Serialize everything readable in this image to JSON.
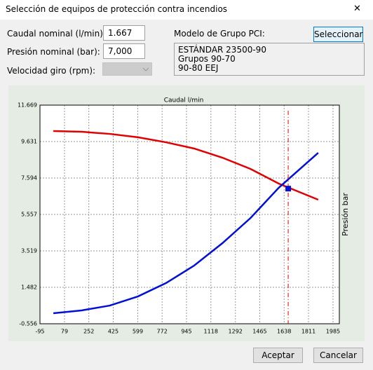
{
  "window": {
    "title": "Selección de equipos de protección contra incendios",
    "close": "✕"
  },
  "form": {
    "caudal_label": "Caudal nominal (l/min):",
    "caudal_value": "1.667",
    "presion_label": "Presión nominal (bar):",
    "presion_value": "7,000",
    "velocidad_label": "Velocidad giro (rpm):",
    "modelo_label": "Modelo de Grupo PCI:",
    "select_button": "Seleccionar",
    "modelo_lines": [
      "ESTÁNDAR 23500-90",
      "Grupos 90-70",
      "90-80 EEJ"
    ]
  },
  "buttons": {
    "accept": "Aceptar",
    "cancel": "Cancelar"
  },
  "chart_data": {
    "type": "line",
    "title": "Caudal l/min",
    "ylabel": "Presión bar",
    "x": [
      0,
      200,
      400,
      600,
      800,
      1000,
      1200,
      1400,
      1600,
      1880
    ],
    "series": [
      {
        "color": "#e00000",
        "values": [
          10.22,
          10.18,
          10.06,
          9.87,
          9.59,
          9.24,
          8.73,
          8.1,
          7.28,
          6.38
        ]
      },
      {
        "color": "#0010d8",
        "values": [
          0.03,
          0.19,
          0.46,
          0.97,
          1.72,
          2.7,
          3.95,
          5.36,
          7.05,
          9.0
        ]
      }
    ],
    "point": {
      "x": 1667,
      "y": 7.0
    },
    "xlim": [
      -95,
      2030
    ],
    "ylim": [
      -0.556,
      11.669
    ],
    "xticks": [
      -95,
      79,
      252,
      425,
      599,
      772,
      945,
      1118,
      1292,
      1465,
      1638,
      1811,
      1985
    ],
    "yticks": [
      -0.556,
      1.482,
      3.519,
      5.557,
      7.594,
      9.631,
      11.669
    ],
    "grid": true
  }
}
